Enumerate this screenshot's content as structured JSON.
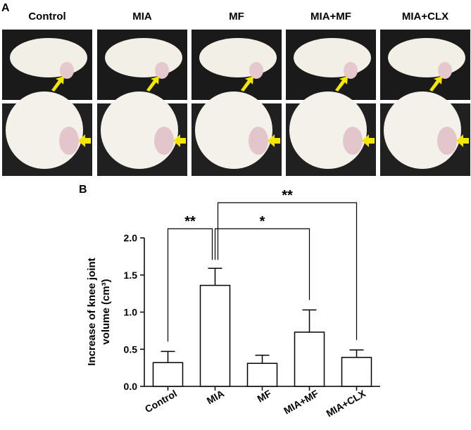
{
  "panel_a": {
    "label": "A",
    "columns": [
      "Control",
      "MIA",
      "MF",
      "MIA+MF",
      "MIA+CLX"
    ]
  },
  "chart_data": {
    "type": "bar",
    "panel_label": "B",
    "ylabel": [
      "Increase of knee joint",
      "volume (cm³)"
    ],
    "categories": [
      "Control",
      "MIA",
      "MF",
      "MIA+MF",
      "MIA+CLX"
    ],
    "values": [
      0.32,
      1.36,
      0.31,
      0.73,
      0.39
    ],
    "errors": [
      0.15,
      0.23,
      0.11,
      0.3,
      0.1
    ],
    "color": "#ffffff",
    "ylim": [
      0,
      2.0
    ],
    "yticks": [
      {
        "value": 0,
        "label": "0.0"
      },
      {
        "value": 0.5,
        "label": "0.5"
      },
      {
        "value": 1,
        "label": "1.0"
      },
      {
        "value": 1.5,
        "label": "1.5"
      },
      {
        "value": 2,
        "label": "2.0"
      }
    ],
    "annotations": [
      {
        "from": "Control",
        "to": "MIA",
        "label": "**"
      },
      {
        "from": "MIA",
        "to": "MIA+MF",
        "label": "*"
      },
      {
        "from": "MIA",
        "to": "MIA+CLX",
        "label": "**"
      }
    ]
  }
}
